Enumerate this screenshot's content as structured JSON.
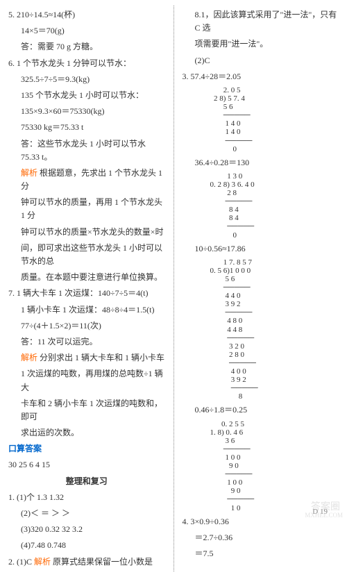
{
  "left": {
    "p5": {
      "l1": "5. 210÷14.5≈14(杯)",
      "l2": "14×5＝70(g)",
      "l3": "答：需要 70 g 方糖。"
    },
    "p6": {
      "l1": "6. 1 个节水龙头 1 分钟可以节水：",
      "l2": "325.5÷7÷5＝9.3(kg)",
      "l3": "135 个节水龙头 1 小时可以节水：",
      "l4": "135×9.3×60＝75330(kg)",
      "l5": "75330 kg＝75.33 t",
      "l6": "答：这些节水龙头 1 小时可以节水 75.33 t。",
      "exp": "解析",
      "e1": "根据题意，先求出 1 个节水龙头 1 分",
      "e2": "钟可以节水的质量，再用 1 个节水龙头 1 分",
      "e3": "钟可以节水的质量×节水龙头的数量×时",
      "e4": "间，即可求出这些节水龙头 1 小时可以节水的总",
      "e5": "质量。在本题中要注意进行单位换算。"
    },
    "p7": {
      "l1": "7. 1 辆大卡车 1 次运煤：140÷7÷5＝4(t)",
      "l2": "1 辆小卡车 1 次运煤：48÷8÷4＝1.5(t)",
      "l3": "77÷(4＋1.5×2)＝11(次)",
      "l4": "答：11 次可以运完。",
      "exp": "解析",
      "e1": "分别求出 1 辆大卡车和 1 辆小卡车",
      "e2": "1 次运煤的吨数，再用煤的总吨数÷1 辆大",
      "e3": "卡车和 2 辆小卡车 1 次运煤的吨数和，即可",
      "e4": "求出运的次数。"
    },
    "oral_title": "口算答案",
    "oral": "30    25    6    4    15",
    "section": "整理和复习",
    "q1": {
      "a": "1. (1)个   1.3   1.32",
      "b": "(2)＜   ＝   ＞   ＞",
      "c": "(3)320   0.32   32   3.2",
      "d": "(4)7.48   0.748"
    },
    "q2": {
      "a": "2. (1)C",
      "exp": "解析",
      "e1": "原算式结果保留一位小数是"
    }
  },
  "right": {
    "top1": "8.1，因此该算式采用了\"进一法\"，只有 C 选",
    "top2": "项需要用\"进一法\"。",
    "top3": "(2)C",
    "q3": "3. 57.4÷28＝2.05",
    "div1": "       2. 0 5\n  2 8) 5 7. 4\n       5 6\n       ─────\n        1 4 0\n        1 4 0\n        ─────\n            0",
    "q3b": "36.4÷0.28＝130",
    "div2": "         1 3 0\n0. 2 8) 3 6. 4 0\n         2 8\n        ─────\n          8 4\n          8 4\n         ─────\n            0",
    "q3c": "10÷0.56≈17.86",
    "div3": "       1 7. 8 5 7\n0. 5 6)1 0 0 0\n        5 6\n       ─────\n        4 4 0\n        3 9 2\n        ─────\n         4 8 0\n         4 4 8\n         ─────\n          3 2 0\n          2 8 0\n          ─────\n           4 0 0\n           3 9 2\n           ─────\n               8",
    "q3d": "0.46÷1.8＝0.25",
    "div4": "      0. 2 5 5\n1. 8) 0. 4 6\n        3 6\n       ─────\n        1 0 0\n          9 0\n        ─────\n         1 0 0\n           9 0\n         ─────\n           1 0",
    "q4": {
      "l1": "4.   3×0.9÷0.36",
      "l2": "＝2.7÷0.36",
      "l3": "＝7.5"
    }
  },
  "footer": "D 19",
  "wm1": "答案圈",
  "wm2": "MXHEE.COM"
}
